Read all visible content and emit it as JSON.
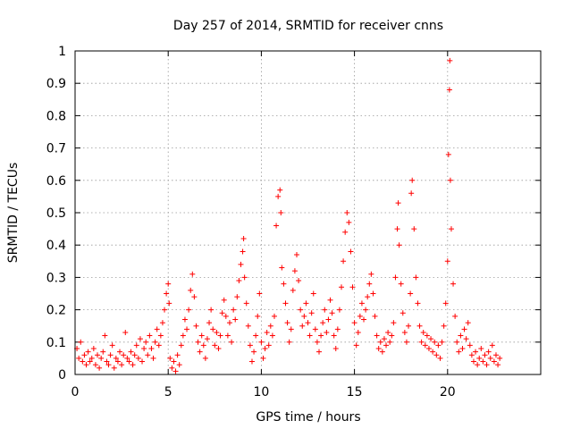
{
  "chart_data": {
    "type": "scatter",
    "title": "Day 257 of 2014, SRMTID for receiver cnns",
    "xlabel": "GPS time / hours",
    "ylabel": "SRMTID / TECUs",
    "xlim": [
      0,
      25
    ],
    "ylim": [
      0,
      1
    ],
    "xticks": [
      0,
      5,
      10,
      15,
      20
    ],
    "yticks": [
      0,
      0.1,
      0.2,
      0.3,
      0.4,
      0.5,
      0.6,
      0.7,
      0.8,
      0.9,
      1
    ],
    "grid": true,
    "marker": "+",
    "marker_color": "#ff0000",
    "series": [
      {
        "name": "SRMTID",
        "points": [
          [
            0.1,
            0.08
          ],
          [
            0.2,
            0.05
          ],
          [
            0.3,
            0.1
          ],
          [
            0.4,
            0.04
          ],
          [
            0.5,
            0.06
          ],
          [
            0.6,
            0.03
          ],
          [
            0.7,
            0.07
          ],
          [
            0.8,
            0.04
          ],
          [
            0.9,
            0.05
          ],
          [
            1.0,
            0.08
          ],
          [
            1.1,
            0.03
          ],
          [
            1.2,
            0.06
          ],
          [
            1.3,
            0.02
          ],
          [
            1.4,
            0.05
          ],
          [
            1.5,
            0.07
          ],
          [
            1.6,
            0.12
          ],
          [
            1.7,
            0.04
          ],
          [
            1.8,
            0.03
          ],
          [
            1.9,
            0.06
          ],
          [
            2.0,
            0.09
          ],
          [
            2.1,
            0.02
          ],
          [
            2.2,
            0.05
          ],
          [
            2.3,
            0.04
          ],
          [
            2.4,
            0.07
          ],
          [
            2.5,
            0.03
          ],
          [
            2.6,
            0.06
          ],
          [
            2.7,
            0.13
          ],
          [
            2.8,
            0.05
          ],
          [
            2.9,
            0.04
          ],
          [
            3.0,
            0.07
          ],
          [
            3.1,
            0.03
          ],
          [
            3.2,
            0.06
          ],
          [
            3.3,
            0.09
          ],
          [
            3.4,
            0.05
          ],
          [
            3.5,
            0.11
          ],
          [
            3.6,
            0.04
          ],
          [
            3.7,
            0.08
          ],
          [
            3.8,
            0.1
          ],
          [
            3.9,
            0.06
          ],
          [
            4.0,
            0.12
          ],
          [
            4.1,
            0.08
          ],
          [
            4.2,
            0.05
          ],
          [
            4.3,
            0.1
          ],
          [
            4.4,
            0.14
          ],
          [
            4.5,
            0.09
          ],
          [
            4.6,
            0.12
          ],
          [
            4.7,
            0.16
          ],
          [
            4.8,
            0.2
          ],
          [
            4.9,
            0.25
          ],
          [
            5.0,
            0.28
          ],
          [
            5.05,
            0.22
          ],
          [
            5.1,
            0.05
          ],
          [
            5.2,
            0.02
          ],
          [
            5.3,
            0.04
          ],
          [
            5.4,
            0.01
          ],
          [
            5.5,
            0.06
          ],
          [
            5.6,
            0.03
          ],
          [
            5.7,
            0.09
          ],
          [
            5.8,
            0.12
          ],
          [
            5.9,
            0.17
          ],
          [
            6.0,
            0.14
          ],
          [
            6.1,
            0.2
          ],
          [
            6.2,
            0.26
          ],
          [
            6.3,
            0.31
          ],
          [
            6.4,
            0.24
          ],
          [
            6.5,
            0.15
          ],
          [
            6.6,
            0.1
          ],
          [
            6.7,
            0.07
          ],
          [
            6.8,
            0.12
          ],
          [
            6.9,
            0.09
          ],
          [
            7.0,
            0.05
          ],
          [
            7.1,
            0.11
          ],
          [
            7.2,
            0.16
          ],
          [
            7.3,
            0.2
          ],
          [
            7.4,
            0.14
          ],
          [
            7.5,
            0.09
          ],
          [
            7.6,
            0.13
          ],
          [
            7.7,
            0.08
          ],
          [
            7.8,
            0.12
          ],
          [
            7.9,
            0.19
          ],
          [
            8.0,
            0.23
          ],
          [
            8.1,
            0.18
          ],
          [
            8.2,
            0.12
          ],
          [
            8.3,
            0.16
          ],
          [
            8.4,
            0.1
          ],
          [
            8.5,
            0.2
          ],
          [
            8.6,
            0.17
          ],
          [
            8.7,
            0.24
          ],
          [
            8.8,
            0.29
          ],
          [
            8.9,
            0.34
          ],
          [
            9.0,
            0.38
          ],
          [
            9.05,
            0.42
          ],
          [
            9.1,
            0.3
          ],
          [
            9.2,
            0.22
          ],
          [
            9.3,
            0.15
          ],
          [
            9.4,
            0.09
          ],
          [
            9.5,
            0.04
          ],
          [
            9.6,
            0.07
          ],
          [
            9.7,
            0.12
          ],
          [
            9.8,
            0.18
          ],
          [
            9.9,
            0.25
          ],
          [
            10.0,
            0.1
          ],
          [
            10.1,
            0.05
          ],
          [
            10.2,
            0.08
          ],
          [
            10.3,
            0.13
          ],
          [
            10.4,
            0.09
          ],
          [
            10.5,
            0.15
          ],
          [
            10.6,
            0.12
          ],
          [
            10.7,
            0.18
          ],
          [
            10.8,
            0.46
          ],
          [
            10.9,
            0.55
          ],
          [
            11.0,
            0.57
          ],
          [
            11.05,
            0.5
          ],
          [
            11.1,
            0.33
          ],
          [
            11.2,
            0.28
          ],
          [
            11.3,
            0.22
          ],
          [
            11.4,
            0.16
          ],
          [
            11.5,
            0.1
          ],
          [
            11.6,
            0.14
          ],
          [
            11.7,
            0.26
          ],
          [
            11.8,
            0.32
          ],
          [
            11.9,
            0.37
          ],
          [
            12.0,
            0.29
          ],
          [
            12.1,
            0.2
          ],
          [
            12.2,
            0.15
          ],
          [
            12.3,
            0.18
          ],
          [
            12.4,
            0.22
          ],
          [
            12.5,
            0.16
          ],
          [
            12.6,
            0.12
          ],
          [
            12.7,
            0.19
          ],
          [
            12.8,
            0.25
          ],
          [
            12.9,
            0.14
          ],
          [
            13.0,
            0.1
          ],
          [
            13.1,
            0.07
          ],
          [
            13.2,
            0.12
          ],
          [
            13.3,
            0.16
          ],
          [
            13.4,
            0.2
          ],
          [
            13.5,
            0.13
          ],
          [
            13.6,
            0.17
          ],
          [
            13.7,
            0.23
          ],
          [
            13.8,
            0.19
          ],
          [
            13.9,
            0.12
          ],
          [
            14.0,
            0.08
          ],
          [
            14.1,
            0.14
          ],
          [
            14.2,
            0.2
          ],
          [
            14.3,
            0.27
          ],
          [
            14.4,
            0.35
          ],
          [
            14.5,
            0.44
          ],
          [
            14.6,
            0.5
          ],
          [
            14.7,
            0.47
          ],
          [
            14.8,
            0.38
          ],
          [
            14.9,
            0.27
          ],
          [
            15.0,
            0.16
          ],
          [
            15.1,
            0.09
          ],
          [
            15.2,
            0.13
          ],
          [
            15.3,
            0.18
          ],
          [
            15.4,
            0.22
          ],
          [
            15.5,
            0.17
          ],
          [
            15.6,
            0.2
          ],
          [
            15.7,
            0.24
          ],
          [
            15.8,
            0.28
          ],
          [
            15.9,
            0.31
          ],
          [
            16.0,
            0.25
          ],
          [
            16.1,
            0.18
          ],
          [
            16.2,
            0.12
          ],
          [
            16.3,
            0.08
          ],
          [
            16.4,
            0.1
          ],
          [
            16.5,
            0.07
          ],
          [
            16.6,
            0.11
          ],
          [
            16.7,
            0.09
          ],
          [
            16.8,
            0.13
          ],
          [
            16.9,
            0.1
          ],
          [
            17.0,
            0.12
          ],
          [
            17.1,
            0.16
          ],
          [
            17.2,
            0.3
          ],
          [
            17.3,
            0.45
          ],
          [
            17.35,
            0.53
          ],
          [
            17.4,
            0.4
          ],
          [
            17.5,
            0.28
          ],
          [
            17.6,
            0.19
          ],
          [
            17.7,
            0.13
          ],
          [
            17.8,
            0.1
          ],
          [
            17.9,
            0.15
          ],
          [
            18.0,
            0.25
          ],
          [
            18.05,
            0.56
          ],
          [
            18.1,
            0.6
          ],
          [
            18.2,
            0.45
          ],
          [
            18.3,
            0.3
          ],
          [
            18.4,
            0.22
          ],
          [
            18.5,
            0.15
          ],
          [
            18.6,
            0.1
          ],
          [
            18.7,
            0.13
          ],
          [
            18.8,
            0.09
          ],
          [
            18.9,
            0.12
          ],
          [
            19.0,
            0.08
          ],
          [
            19.1,
            0.11
          ],
          [
            19.2,
            0.07
          ],
          [
            19.3,
            0.1
          ],
          [
            19.4,
            0.06
          ],
          [
            19.5,
            0.09
          ],
          [
            19.6,
            0.05
          ],
          [
            19.7,
            0.1
          ],
          [
            19.8,
            0.15
          ],
          [
            19.9,
            0.22
          ],
          [
            20.0,
            0.35
          ],
          [
            20.05,
            0.68
          ],
          [
            20.1,
            0.88
          ],
          [
            20.12,
            0.97
          ],
          [
            20.15,
            0.6
          ],
          [
            20.2,
            0.45
          ],
          [
            20.3,
            0.28
          ],
          [
            20.4,
            0.18
          ],
          [
            20.5,
            0.1
          ],
          [
            20.6,
            0.07
          ],
          [
            20.7,
            0.12
          ],
          [
            20.8,
            0.08
          ],
          [
            20.9,
            0.14
          ],
          [
            21.0,
            0.11
          ],
          [
            21.1,
            0.16
          ],
          [
            21.2,
            0.09
          ],
          [
            21.3,
            0.06
          ],
          [
            21.4,
            0.04
          ],
          [
            21.5,
            0.07
          ],
          [
            21.6,
            0.03
          ],
          [
            21.7,
            0.05
          ],
          [
            21.8,
            0.08
          ],
          [
            21.9,
            0.04
          ],
          [
            22.0,
            0.06
          ],
          [
            22.1,
            0.03
          ],
          [
            22.2,
            0.07
          ],
          [
            22.3,
            0.05
          ],
          [
            22.4,
            0.09
          ],
          [
            22.5,
            0.04
          ],
          [
            22.6,
            0.06
          ],
          [
            22.7,
            0.03
          ],
          [
            22.8,
            0.05
          ]
        ]
      }
    ]
  }
}
